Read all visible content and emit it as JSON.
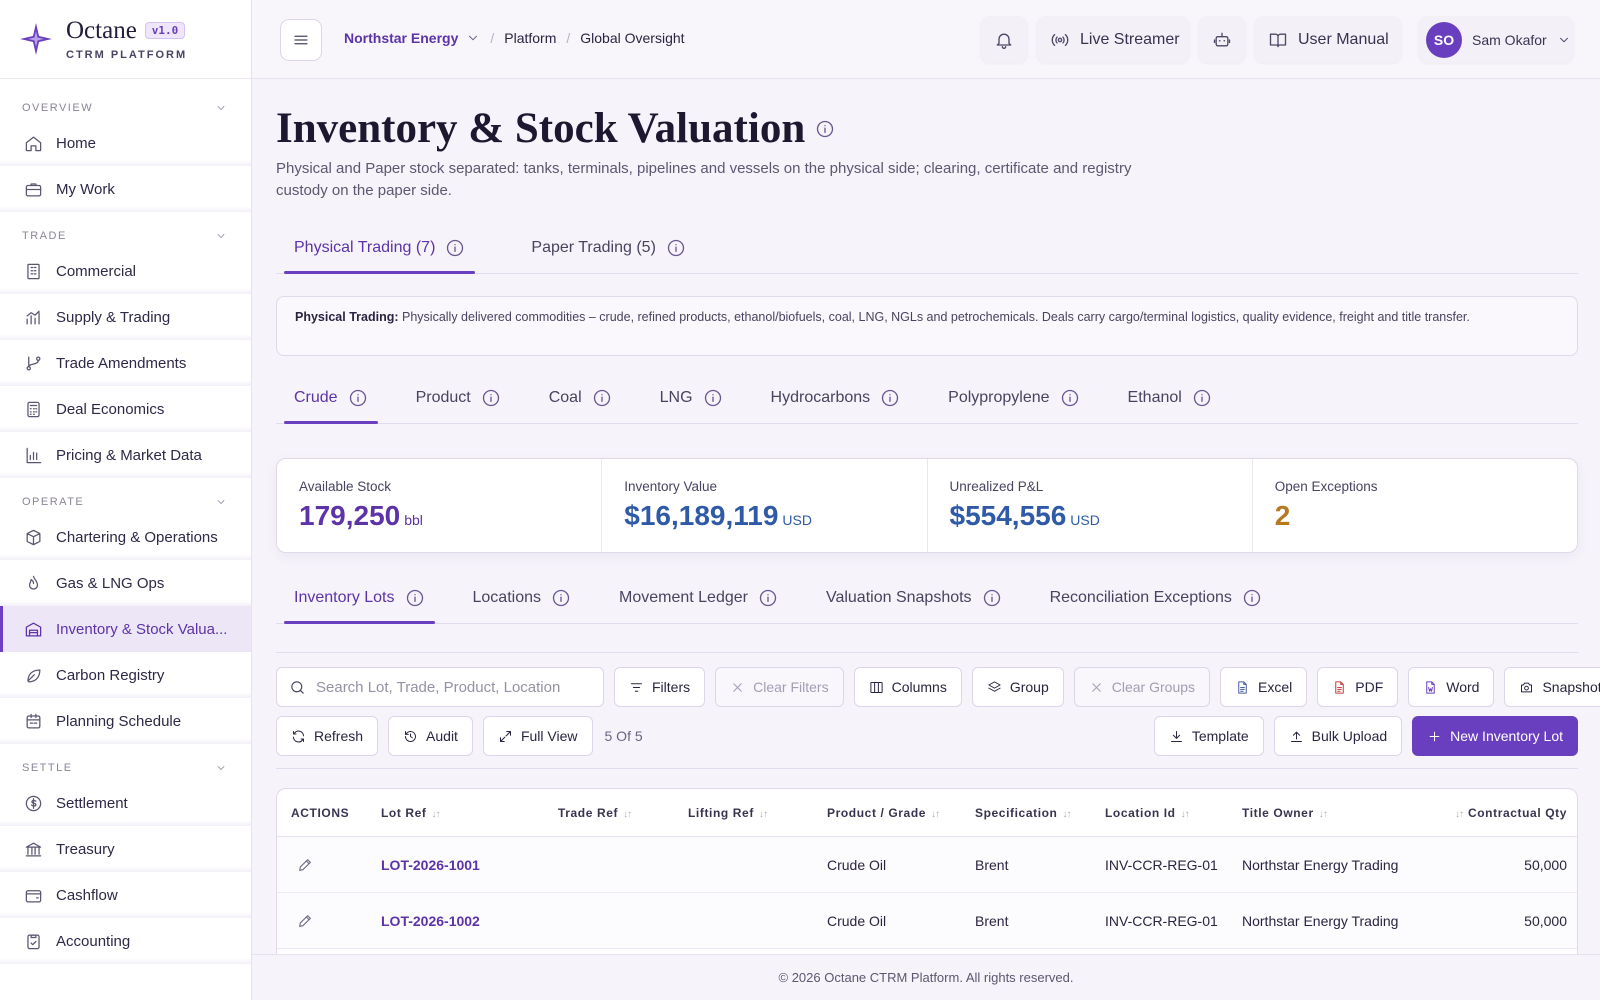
{
  "brand": {
    "name": "Octane",
    "version": "v1.0",
    "subtitle": "CTRM PLATFORM"
  },
  "sidebar": {
    "sections": [
      {
        "title": "OVERVIEW",
        "items": [
          "Home",
          "My Work"
        ]
      },
      {
        "title": "TRADE",
        "items": [
          "Commercial",
          "Supply & Trading",
          "Trade Amendments",
          "Deal Economics",
          "Pricing & Market Data"
        ]
      },
      {
        "title": "OPERATE",
        "items": [
          "Chartering & Operations",
          "Gas & LNG Ops",
          "Inventory & Stock Valua...",
          "Carbon Registry",
          "Planning Schedule"
        ]
      },
      {
        "title": "SETTLE",
        "items": [
          "Settlement",
          "Treasury",
          "Cashflow",
          "Accounting"
        ]
      }
    ],
    "active_item": "Inventory & Stock Valua..."
  },
  "topbar": {
    "breadcrumb": [
      "Northstar Energy",
      "Platform",
      "Global Oversight"
    ],
    "live_streamer": "Live Streamer",
    "user_manual": "User Manual",
    "user_initials": "SO",
    "user_name": "Sam Okafor"
  },
  "page": {
    "title": "Inventory & Stock Valuation",
    "subtitle": "Physical and Paper stock separated: tanks, terminals, pipelines and vessels on the physical side; clearing, certificate and registry custody on the paper side."
  },
  "mode_tabs": [
    "Physical Trading (7)",
    "Paper Trading (5)"
  ],
  "note": {
    "label": "Physical Trading:",
    "text": "Physically delivered commodities – crude, refined products, ethanol/biofuels, coal, LNG, NGLs and petrochemicals. Deals carry cargo/terminal logistics, quality evidence, freight and title transfer."
  },
  "commodity_tabs": [
    "Crude",
    "Product",
    "Coal",
    "LNG",
    "Hydrocarbons",
    "Polypropylene",
    "Ethanol"
  ],
  "kpis": [
    {
      "label": "Available Stock",
      "value": "179,250",
      "unit": "bbl",
      "color": "#5d33a8"
    },
    {
      "label": "Inventory Value",
      "value": "$16,189,119",
      "unit": "USD",
      "color": "#2f5aa8"
    },
    {
      "label": "Unrealized P&L",
      "value": "$554,556",
      "unit": "USD",
      "color": "#2f5aa8"
    },
    {
      "label": "Open Exceptions",
      "value": "2",
      "unit": "",
      "color": "#b7791f"
    }
  ],
  "sub_tabs": [
    "Inventory Lots",
    "Locations",
    "Movement Ledger",
    "Valuation Snapshots",
    "Reconciliation Exceptions"
  ],
  "toolbar": {
    "search_placeholder": "Search Lot, Trade, Product, Location",
    "filters": "Filters",
    "clear_filters": "Clear Filters",
    "columns": "Columns",
    "group": "Group",
    "clear_groups": "Clear Groups",
    "excel": "Excel",
    "pdf": "PDF",
    "word": "Word",
    "snapshot": "Snapshot",
    "refresh": "Refresh",
    "audit": "Audit",
    "full_view": "Full View",
    "count": "5 Of 5",
    "template": "Template",
    "bulk_upload": "Bulk Upload",
    "new_lot": "New Inventory Lot"
  },
  "table": {
    "headers": [
      "ACTIONS",
      "Lot Ref",
      "Trade Ref",
      "Lifting Ref",
      "Product / Grade",
      "Specification",
      "Location Id",
      "Title Owner",
      "Contractual Qty"
    ],
    "rows": [
      {
        "lot": "LOT-2026-1001",
        "trade": "",
        "lifting": "",
        "product": "Crude Oil",
        "spec": "Brent",
        "location": "INV-CCR-REG-01",
        "owner": "Northstar Energy Trading",
        "qty": "50,000"
      },
      {
        "lot": "LOT-2026-1002",
        "trade": "",
        "lifting": "",
        "product": "Crude Oil",
        "spec": "Brent",
        "location": "INV-CCR-REG-01",
        "owner": "Northstar Energy Trading",
        "qty": "50,000"
      }
    ]
  },
  "footer": "© 2026 Octane CTRM Platform. All rights reserved.",
  "colors": {
    "accent": "#6a3fbf",
    "accent_text": "#5d33a8",
    "value_blue": "#2f5aa8",
    "warning": "#b7791f"
  }
}
